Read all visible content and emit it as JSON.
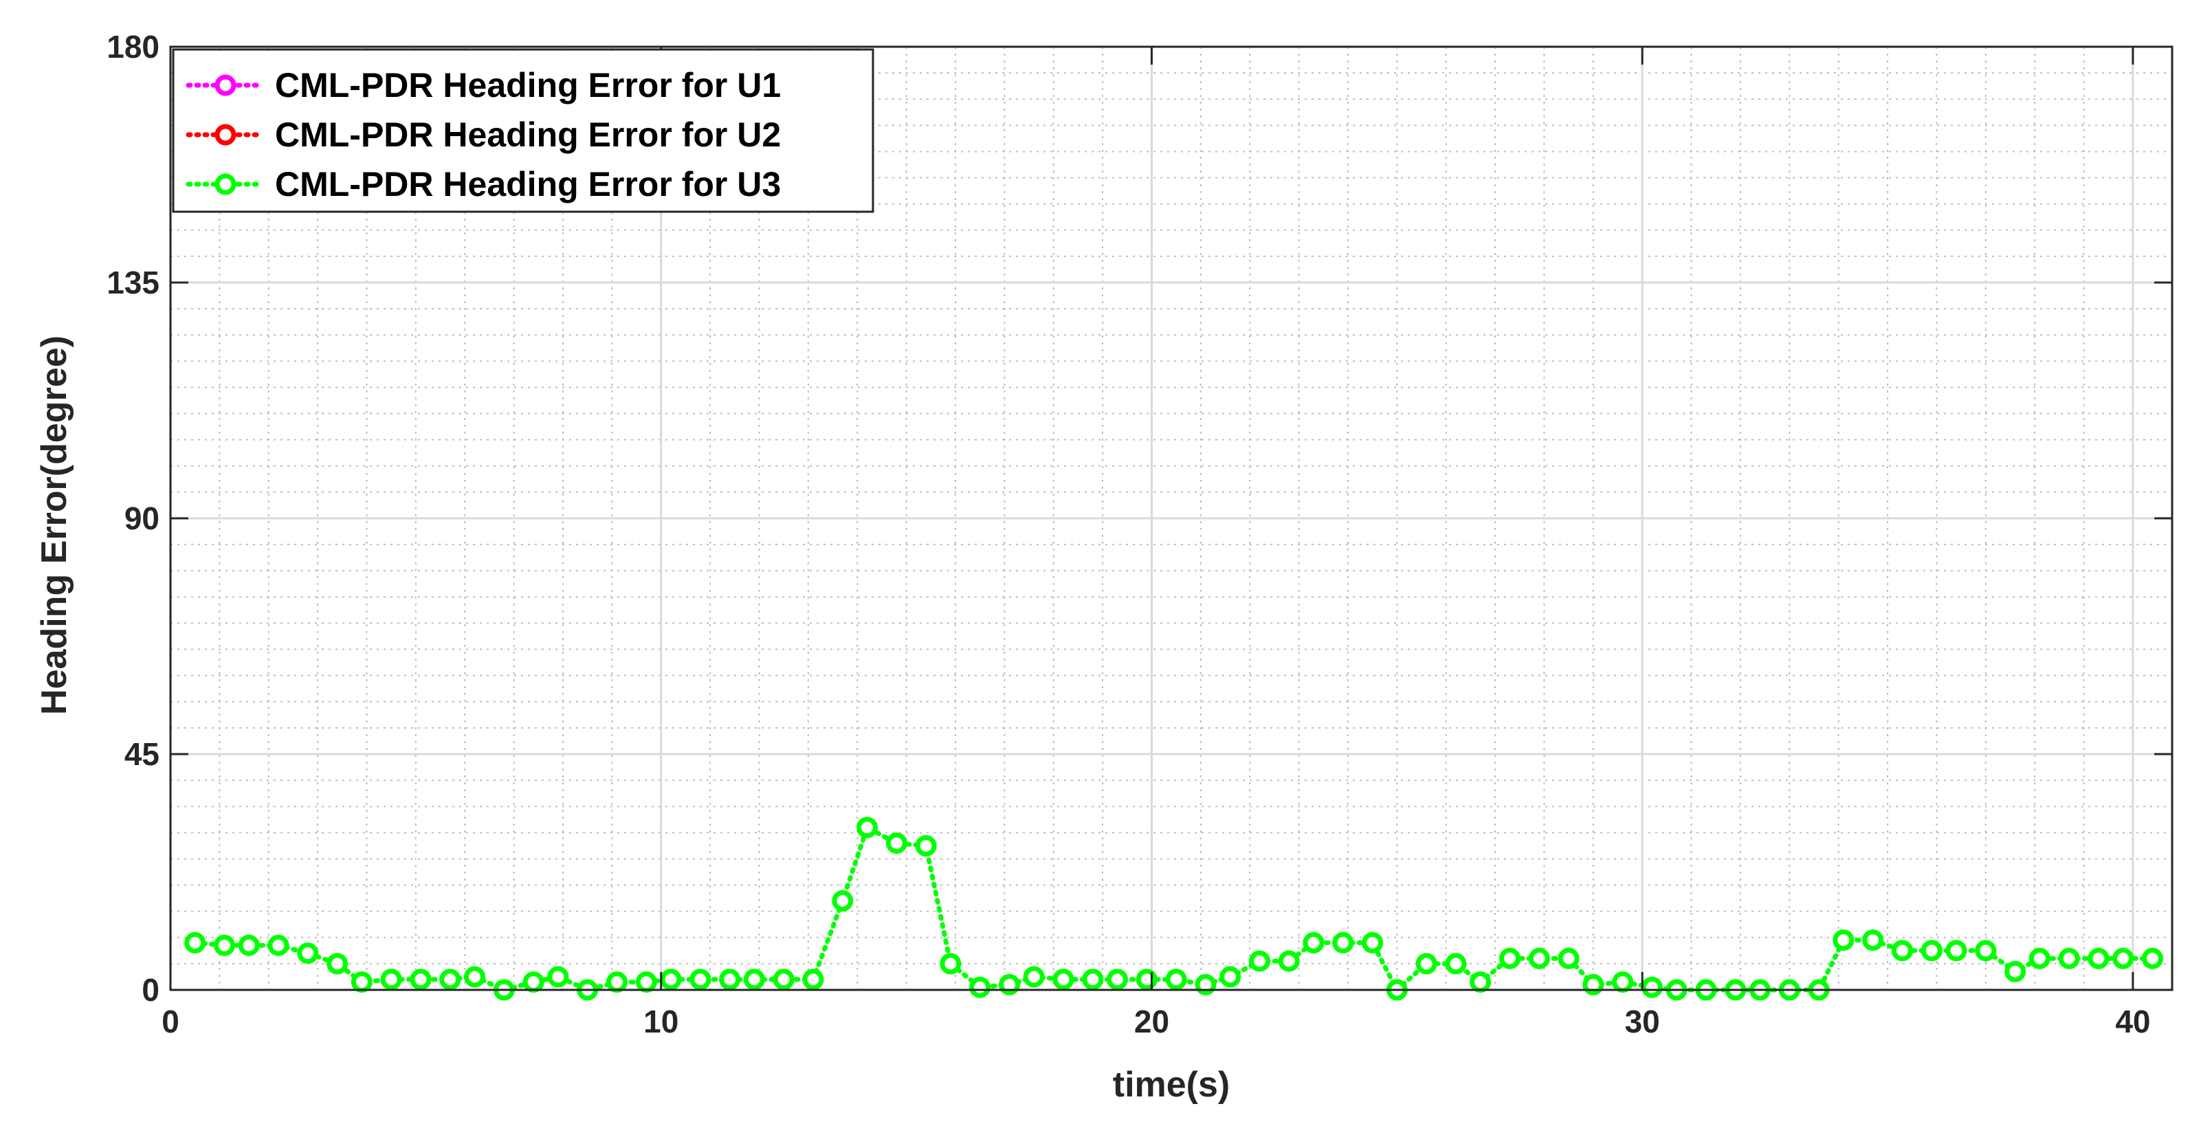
{
  "chart_data": {
    "type": "line",
    "title": "",
    "xlabel": "time(s)",
    "ylabel": "Heading Error(degree)",
    "xlim": [
      0,
      40.8
    ],
    "ylim": [
      0,
      180
    ],
    "xticks": [
      0,
      10,
      20,
      30,
      40
    ],
    "yticks": [
      0,
      45,
      90,
      135,
      180
    ],
    "grid": true,
    "minor_grid": true,
    "legend_position": "top-left",
    "series": [
      {
        "name": "CML-PDR Heading Error for U1",
        "color": "#ff00ff",
        "line_style": "dotted",
        "marker": "circle",
        "x": [],
        "y": []
      },
      {
        "name": "CML-PDR Heading Error for U2",
        "color": "#ff0000",
        "line_style": "dotted",
        "marker": "circle",
        "x": [],
        "y": []
      },
      {
        "name": "CML-PDR Heading Error for U3",
        "color": "#00ff00",
        "line_style": "dotted",
        "marker": "circle",
        "x": [
          0.5,
          1.1,
          1.6,
          2.2,
          2.8,
          3.4,
          3.9,
          4.5,
          5.1,
          5.7,
          6.2,
          6.8,
          7.4,
          7.9,
          8.5,
          9.1,
          9.7,
          10.2,
          10.8,
          11.4,
          11.9,
          12.5,
          13.1,
          13.7,
          14.2,
          14.8,
          15.4,
          15.9,
          16.5,
          17.1,
          17.6,
          18.2,
          18.8,
          19.3,
          19.9,
          20.5,
          21.1,
          21.6,
          22.2,
          22.8,
          23.3,
          23.9,
          24.5,
          25.0,
          25.6,
          26.2,
          26.7,
          27.3,
          27.9,
          28.5,
          29.0,
          29.6,
          30.2,
          30.7,
          31.3,
          31.9,
          32.4,
          33.0,
          33.6,
          34.1,
          34.7,
          35.3,
          35.9,
          36.4,
          37.0,
          37.6,
          38.1,
          38.7,
          39.3,
          39.8,
          40.4
        ],
        "y": [
          9,
          8.5,
          8.5,
          8.5,
          7,
          5,
          1.5,
          2,
          2,
          2,
          2.5,
          0,
          1.5,
          2.5,
          0,
          1.5,
          1.5,
          2,
          2,
          2,
          2,
          2,
          2,
          17,
          31,
          28,
          27.5,
          5,
          0.5,
          1,
          2.5,
          2,
          2,
          2,
          2,
          2,
          1,
          2.5,
          5.5,
          5.5,
          9,
          9,
          9,
          0,
          5,
          5,
          1.5,
          6,
          6,
          6,
          1,
          1.5,
          0.5,
          0,
          0,
          0,
          0,
          0,
          0,
          9.5,
          9.5,
          7.5,
          7.5,
          7.5,
          7.5,
          3.5,
          6,
          6,
          6,
          6,
          6
        ]
      }
    ]
  }
}
